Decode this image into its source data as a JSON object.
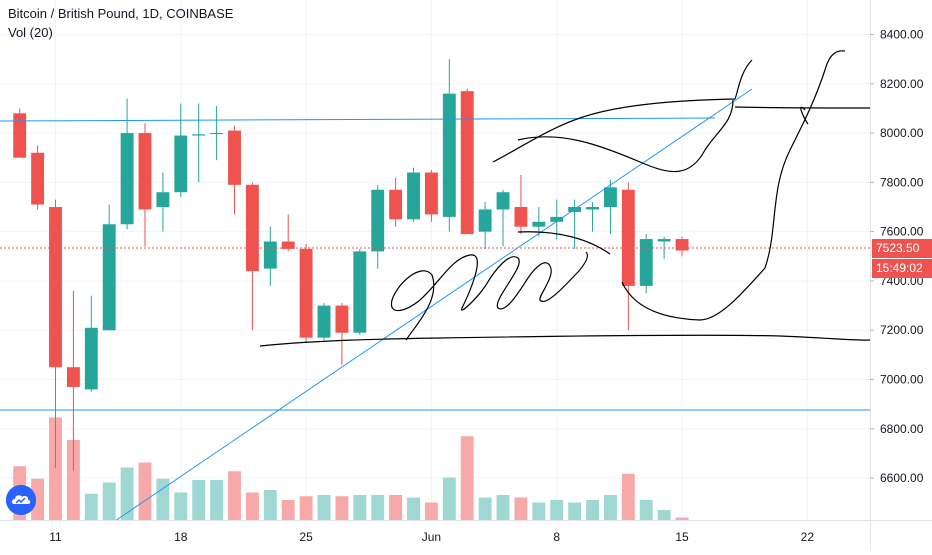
{
  "legend": {
    "title": "Bitcoin / British Pound, 1D, COINBASE",
    "volume_label": "Vol (20)"
  },
  "price_tags": {
    "last_price": "7523.50",
    "countdown": "15:49:02"
  },
  "colors": {
    "up": "#26a69a",
    "down": "#ef5350",
    "up_volume": "#9fd8d2",
    "down_volume": "#f6a9a8",
    "trendline": "#2196f3",
    "drawing": "#000000",
    "last_price_line": "#ef5350",
    "grid": "#f0f3fa"
  },
  "icons": {
    "logo": "tradingview-cloud-icon"
  },
  "chart_data": {
    "type": "candlestick",
    "title": "Bitcoin / British Pound, 1D, COINBASE",
    "y_axis": {
      "side": "right",
      "ylim": [
        6430,
        8540
      ],
      "ticks": [
        6600,
        6800,
        7000,
        7200,
        7400,
        7600,
        7800,
        8000,
        8200,
        8400
      ],
      "tick_labels": [
        "6600.00",
        "6800.00",
        "7000.00",
        "7200.00",
        "7400.00",
        "7600.00",
        "7800.00",
        "8000.00",
        "8200.00",
        "8400.00"
      ]
    },
    "x_axis": {
      "labels": [
        "11",
        "18",
        "25",
        "Jun",
        "8",
        "15",
        "22"
      ],
      "label_day_index": [
        2,
        9,
        16,
        23,
        30,
        37,
        44
      ],
      "day_range": [
        -1.1,
        47.5
      ]
    },
    "grid": true,
    "candles": [
      {
        "o": 8080,
        "h": 8100,
        "l": 7900,
        "c": 7900
      },
      {
        "o": 7920,
        "h": 7950,
        "l": 7690,
        "c": 7710
      },
      {
        "o": 7700,
        "h": 7730,
        "l": 6640,
        "c": 7050
      },
      {
        "o": 7050,
        "h": 7360,
        "l": 6630,
        "c": 6970
      },
      {
        "o": 6960,
        "h": 7340,
        "l": 6950,
        "c": 7210
      },
      {
        "o": 7200,
        "h": 7710,
        "l": 7200,
        "c": 7630
      },
      {
        "o": 7630,
        "h": 8140,
        "l": 7610,
        "c": 8000
      },
      {
        "o": 8000,
        "h": 8040,
        "l": 7540,
        "c": 7690
      },
      {
        "o": 7700,
        "h": 7840,
        "l": 7600,
        "c": 7760
      },
      {
        "o": 7760,
        "h": 8120,
        "l": 7740,
        "c": 7990
      },
      {
        "o": 7990,
        "h": 8120,
        "l": 7800,
        "c": 7995
      },
      {
        "o": 8000,
        "h": 8110,
        "l": 7890,
        "c": 8000
      },
      {
        "o": 8010,
        "h": 8030,
        "l": 7670,
        "c": 7790
      },
      {
        "o": 7790,
        "h": 7800,
        "l": 7200,
        "c": 7440
      },
      {
        "o": 7450,
        "h": 7620,
        "l": 7380,
        "c": 7560
      },
      {
        "o": 7560,
        "h": 7670,
        "l": 7520,
        "c": 7530
      },
      {
        "o": 7530,
        "h": 7550,
        "l": 7150,
        "c": 7170
      },
      {
        "o": 7170,
        "h": 7310,
        "l": 7160,
        "c": 7300
      },
      {
        "o": 7300,
        "h": 7310,
        "l": 7060,
        "c": 7190
      },
      {
        "o": 7190,
        "h": 7530,
        "l": 7180,
        "c": 7520
      },
      {
        "o": 7520,
        "h": 7790,
        "l": 7450,
        "c": 7770
      },
      {
        "o": 7770,
        "h": 7820,
        "l": 7620,
        "c": 7650
      },
      {
        "o": 7650,
        "h": 7860,
        "l": 7640,
        "c": 7840
      },
      {
        "o": 7840,
        "h": 7850,
        "l": 7640,
        "c": 7670
      },
      {
        "o": 7660,
        "h": 8300,
        "l": 7600,
        "c": 8160
      },
      {
        "o": 8170,
        "h": 8180,
        "l": 7590,
        "c": 7590
      },
      {
        "o": 7600,
        "h": 7720,
        "l": 7530,
        "c": 7690
      },
      {
        "o": 7690,
        "h": 7770,
        "l": 7540,
        "c": 7760
      },
      {
        "o": 7700,
        "h": 7830,
        "l": 7590,
        "c": 7620
      },
      {
        "o": 7620,
        "h": 7700,
        "l": 7580,
        "c": 7640
      },
      {
        "o": 7640,
        "h": 7730,
        "l": 7570,
        "c": 7660
      },
      {
        "o": 7680,
        "h": 7730,
        "l": 7530,
        "c": 7700
      },
      {
        "o": 7690,
        "h": 7720,
        "l": 7600,
        "c": 7700
      },
      {
        "o": 7700,
        "h": 7810,
        "l": 7590,
        "c": 7780
      },
      {
        "o": 7770,
        "h": 7800,
        "l": 7200,
        "c": 7380
      },
      {
        "o": 7380,
        "h": 7590,
        "l": 7350,
        "c": 7570
      },
      {
        "o": 7560,
        "h": 7580,
        "l": 7490,
        "c": 7570
      },
      {
        "o": 7570,
        "h": 7580,
        "l": 7500,
        "c": 7523.5
      }
    ],
    "volume": [
      43,
      33,
      82,
      64,
      21,
      30,
      42,
      46,
      33,
      22,
      32,
      32,
      39,
      22,
      24,
      16,
      19,
      20,
      19,
      20,
      20,
      20,
      18,
      14,
      34,
      67,
      18,
      20,
      18,
      14,
      16,
      14,
      16,
      20,
      37,
      16,
      8,
      2
    ],
    "volume_max": 100
  }
}
